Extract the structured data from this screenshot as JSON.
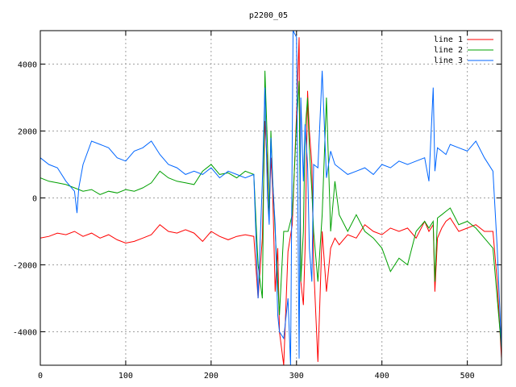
{
  "chart_data": {
    "type": "line",
    "title": "p2200_05",
    "xlabel": "",
    "ylabel": "",
    "xlim": [
      0,
      540
    ],
    "ylim": [
      -5000,
      5000
    ],
    "xticks": [
      0,
      100,
      200,
      300,
      400,
      500
    ],
    "yticks": [
      -4000,
      -2000,
      0,
      2000,
      4000
    ],
    "grid": true,
    "legend_position": "top-right",
    "series": [
      {
        "name": "line 1",
        "color": "#ff0000",
        "x": [
          0,
          10,
          20,
          30,
          40,
          50,
          60,
          70,
          80,
          90,
          100,
          110,
          120,
          130,
          140,
          150,
          160,
          170,
          180,
          190,
          200,
          210,
          220,
          230,
          240,
          250,
          255,
          260,
          263,
          266,
          268,
          270,
          272,
          275,
          278,
          280,
          285,
          290,
          295,
          300,
          303,
          305,
          308,
          310,
          313,
          315,
          318,
          320,
          325,
          330,
          335,
          340,
          345,
          350,
          360,
          370,
          380,
          390,
          400,
          410,
          420,
          430,
          440,
          450,
          455,
          460,
          462,
          465,
          470,
          475,
          480,
          490,
          500,
          510,
          520,
          530,
          535,
          540
        ],
        "y": [
          -1200,
          -1150,
          -1050,
          -1100,
          -1000,
          -1150,
          -1050,
          -1200,
          -1100,
          -1250,
          -1350,
          -1300,
          -1200,
          -1100,
          -800,
          -1000,
          -1050,
          -950,
          -1050,
          -1300,
          -1000,
          -1150,
          -1250,
          -1150,
          -1100,
          -1150,
          -3000,
          -1200,
          2300,
          900,
          -500,
          1200,
          300,
          -2800,
          -1500,
          -4000,
          -5000,
          -1600,
          -800,
          2500,
          4800,
          -2500,
          -3200,
          -1500,
          3200,
          2000,
          1000,
          -2000,
          -4900,
          -1000,
          -2800,
          -1500,
          -1200,
          -1400,
          -1100,
          -1200,
          -800,
          -1000,
          -1100,
          -900,
          -1000,
          -900,
          -1200,
          -700,
          -1000,
          -800,
          -2800,
          -1200,
          -900,
          -700,
          -600,
          -1000,
          -900,
          -800,
          -1000,
          -1000,
          -2500,
          -4800
        ]
      },
      {
        "name": "line 2",
        "color": "#00a000",
        "x": [
          0,
          10,
          20,
          30,
          40,
          50,
          60,
          70,
          80,
          90,
          100,
          110,
          120,
          130,
          140,
          150,
          160,
          170,
          180,
          190,
          200,
          210,
          220,
          230,
          240,
          250,
          255,
          260,
          263,
          266,
          268,
          270,
          272,
          275,
          278,
          280,
          285,
          290,
          295,
          300,
          303,
          305,
          308,
          310,
          313,
          315,
          318,
          320,
          325,
          330,
          335,
          340,
          345,
          350,
          360,
          370,
          380,
          390,
          400,
          410,
          420,
          430,
          440,
          450,
          455,
          460,
          462,
          465,
          470,
          475,
          480,
          490,
          500,
          510,
          520,
          530,
          535,
          540
        ],
        "y": [
          600,
          500,
          450,
          400,
          300,
          200,
          250,
          100,
          200,
          150,
          250,
          200,
          300,
          450,
          800,
          600,
          500,
          450,
          400,
          800,
          1000,
          700,
          750,
          600,
          800,
          700,
          -2000,
          -3000,
          3800,
          1500,
          -500,
          2000,
          600,
          -1000,
          -2500,
          -3500,
          -1000,
          -1000,
          -500,
          2200,
          3500,
          -2500,
          -1000,
          2000,
          3000,
          1500,
          200,
          -1000,
          -2500,
          -500,
          3000,
          -1000,
          500,
          -500,
          -1000,
          -500,
          -1000,
          -1200,
          -1500,
          -2200,
          -1800,
          -2000,
          -1000,
          -700,
          -900,
          -700,
          -2500,
          -600,
          -500,
          -400,
          -300,
          -800,
          -700,
          -900,
          -1200,
          -1500,
          -3000,
          -4500
        ]
      },
      {
        "name": "line 3",
        "color": "#0066ff",
        "x": [
          0,
          10,
          20,
          30,
          40,
          43,
          45,
          50,
          60,
          70,
          80,
          90,
          100,
          110,
          120,
          130,
          140,
          150,
          160,
          170,
          180,
          190,
          200,
          210,
          220,
          230,
          240,
          250,
          255,
          260,
          263,
          266,
          268,
          270,
          272,
          275,
          278,
          280,
          285,
          290,
          293,
          296,
          300,
          303,
          305,
          308,
          310,
          313,
          315,
          318,
          320,
          325,
          330,
          335,
          340,
          345,
          350,
          360,
          370,
          380,
          390,
          400,
          410,
          420,
          430,
          440,
          450,
          455,
          460,
          462,
          465,
          470,
          475,
          480,
          490,
          500,
          510,
          520,
          530,
          535,
          540
        ],
        "y": [
          1200,
          1000,
          900,
          500,
          200,
          -450,
          300,
          1000,
          1700,
          1600,
          1500,
          1200,
          1100,
          1400,
          1500,
          1700,
          1300,
          1000,
          900,
          700,
          800,
          700,
          900,
          600,
          800,
          700,
          600,
          700,
          -3000,
          500,
          3300,
          0,
          -800,
          1800,
          500,
          -800,
          -3500,
          -4000,
          -4200,
          -3000,
          -5000,
          5000,
          4800,
          -4800,
          3000,
          500,
          2200,
          1000,
          -1500,
          -2500,
          1000,
          900,
          3800,
          600,
          1400,
          1000,
          900,
          700,
          800,
          900,
          700,
          1000,
          900,
          1100,
          1000,
          1100,
          1200,
          500,
          3300,
          800,
          1500,
          1400,
          1300,
          1600,
          1500,
          1400,
          1700,
          1200,
          800,
          -1500,
          -4500
        ]
      }
    ]
  }
}
